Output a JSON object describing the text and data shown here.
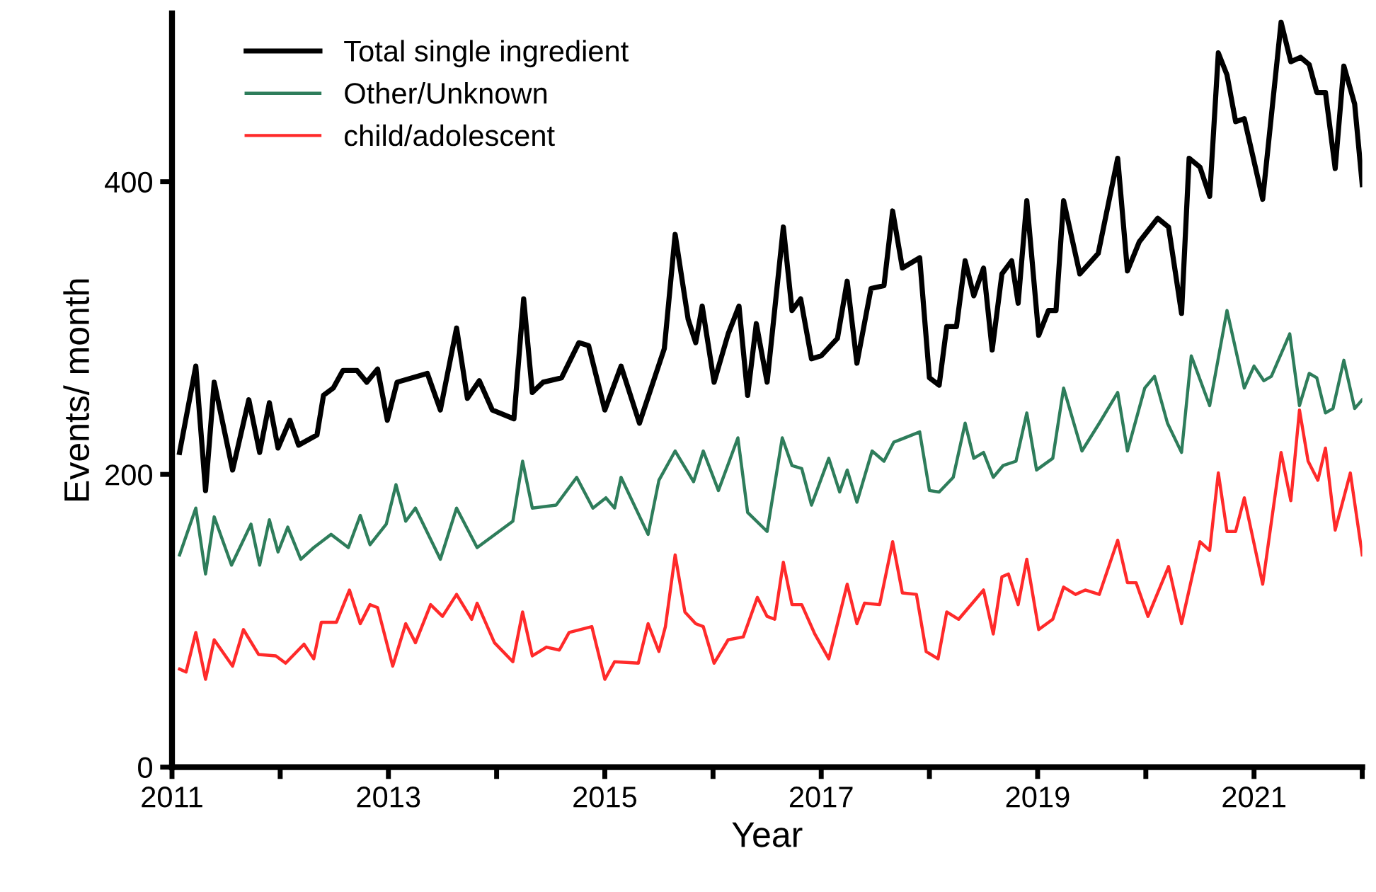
{
  "chart_data": {
    "type": "line",
    "xlabel": "Year",
    "ylabel": "Events/ month",
    "xlim": [
      2011,
      2022
    ],
    "ylim": [
      0,
      515
    ],
    "xticks": [
      2011,
      {
        "value": 2012,
        "label": null
      },
      2013,
      {
        "value": 2014,
        "label": null
      },
      2015,
      {
        "value": 2016,
        "label": null
      },
      2017,
      {
        "value": 2018,
        "label": null
      },
      2019,
      {
        "value": 2020,
        "label": null
      },
      2021,
      {
        "value": 2022,
        "label": null
      }
    ],
    "yticks": [
      0,
      200,
      400
    ],
    "grid": false,
    "legend": "top left",
    "marker": "none",
    "line_style": "solid",
    "series": [
      {
        "name": "Total single ingredient",
        "color": "#000000",
        "x": [
          2011.07,
          2011.22,
          2011.31,
          2011.39,
          2011.56,
          2011.71,
          2011.81,
          2011.9,
          2011.98,
          2012.09,
          2012.17,
          2012.34,
          2012.4,
          2012.49,
          2012.58,
          2012.71,
          2012.8,
          2012.9,
          2012.99,
          2013.08,
          2013.36,
          2013.48,
          2013.63,
          2013.73,
          2013.84,
          2013.96,
          2014.16,
          2014.25,
          2014.33,
          2014.43,
          2014.6,
          2014.76,
          2014.85,
          2015.0,
          2015.15,
          2015.32,
          2015.55,
          2015.65,
          2015.77,
          2015.84,
          2015.9,
          2016.01,
          2016.14,
          2016.24,
          2016.32,
          2016.4,
          2016.5,
          2016.65,
          2016.73,
          2016.81,
          2016.91,
          2017.0,
          2017.15,
          2017.24,
          2017.33,
          2017.46,
          2017.58,
          2017.66,
          2017.75,
          2017.91,
          2018.0,
          2018.09,
          2018.16,
          2018.25,
          2018.33,
          2018.41,
          2018.5,
          2018.58,
          2018.67,
          2018.76,
          2018.82,
          2018.9,
          2019.01,
          2019.1,
          2019.17,
          2019.24,
          2019.39,
          2019.56,
          2019.74,
          2019.83,
          2019.94,
          2020.11,
          2020.21,
          2020.33,
          2020.4,
          2020.5,
          2020.59,
          2020.67,
          2020.75,
          2020.83,
          2020.91,
          2021.08,
          2021.25,
          2021.34,
          2021.43,
          2021.51,
          2021.58,
          2021.66,
          2021.75,
          2021.83,
          2021.93,
          2022.0
        ],
        "values": [
          215,
          274,
          189,
          263,
          203,
          251,
          215,
          249,
          218,
          237,
          220,
          227,
          254,
          259,
          271,
          271,
          263,
          272,
          237,
          263,
          269,
          244,
          300,
          252,
          264,
          244,
          238,
          320,
          256,
          263,
          266,
          290,
          288,
          244,
          274,
          235,
          286,
          364,
          306,
          290,
          315,
          263,
          296,
          315,
          254,
          303,
          263,
          369,
          312,
          320,
          279,
          281,
          293,
          332,
          276,
          327,
          329,
          380,
          341,
          348,
          266,
          261,
          301,
          301,
          346,
          322,
          341,
          285,
          337,
          346,
          317,
          387,
          295,
          312,
          312,
          387,
          337,
          351,
          416,
          339,
          359,
          375,
          369,
          310,
          416,
          410,
          390,
          488,
          473,
          441,
          443,
          388,
          509,
          482,
          485,
          480,
          461,
          461,
          409,
          479,
          453,
          398
        ]
      },
      {
        "name": "Other/Unknown",
        "color": "#2e7d5b",
        "x": [
          2011.07,
          2011.22,
          2011.31,
          2011.39,
          2011.55,
          2011.73,
          2011.81,
          2011.9,
          2011.98,
          2012.07,
          2012.19,
          2012.31,
          2012.47,
          2012.63,
          2012.74,
          2012.83,
          2012.98,
          2013.07,
          2013.16,
          2013.25,
          2013.48,
          2013.63,
          2013.82,
          2014.15,
          2014.24,
          2014.33,
          2014.55,
          2014.74,
          2014.89,
          2015.01,
          2015.09,
          2015.15,
          2015.4,
          2015.5,
          2015.65,
          2015.82,
          2015.91,
          2016.05,
          2016.23,
          2016.32,
          2016.5,
          2016.64,
          2016.73,
          2016.82,
          2016.91,
          2017.07,
          2017.17,
          2017.24,
          2017.33,
          2017.47,
          2017.58,
          2017.67,
          2017.91,
          2018.0,
          2018.09,
          2018.22,
          2018.33,
          2018.41,
          2018.5,
          2018.59,
          2018.68,
          2018.8,
          2018.9,
          2018.99,
          2019.14,
          2019.24,
          2019.41,
          2019.57,
          2019.74,
          2019.83,
          2019.99,
          2020.08,
          2020.2,
          2020.33,
          2020.42,
          2020.59,
          2020.75,
          2020.91,
          2021.0,
          2021.09,
          2021.16,
          2021.33,
          2021.42,
          2021.51,
          2021.58,
          2021.66,
          2021.73,
          2021.83,
          2021.93,
          2022.0
        ],
        "values": [
          145,
          177,
          132,
          171,
          138,
          166,
          138,
          169,
          147,
          164,
          142,
          150,
          159,
          150,
          172,
          152,
          166,
          193,
          168,
          177,
          142,
          177,
          150,
          168,
          209,
          177,
          179,
          198,
          177,
          184,
          177,
          198,
          159,
          196,
          216,
          195,
          216,
          189,
          225,
          174,
          161,
          225,
          206,
          204,
          179,
          211,
          188,
          203,
          181,
          216,
          209,
          222,
          229,
          189,
          188,
          198,
          235,
          211,
          215,
          198,
          206,
          209,
          242,
          203,
          211,
          259,
          216,
          235,
          256,
          216,
          259,
          267,
          235,
          215,
          281,
          247,
          312,
          259,
          274,
          264,
          267,
          296,
          247,
          269,
          266,
          242,
          245,
          278,
          245,
          251
        ]
      },
      {
        "name": "child/adolescent",
        "color": "#ff2a2a",
        "x": [
          2011.07,
          2011.13,
          2011.22,
          2011.31,
          2011.39,
          2011.56,
          2011.66,
          2011.8,
          2011.96,
          2012.05,
          2012.22,
          2012.31,
          2012.38,
          2012.52,
          2012.64,
          2012.74,
          2012.83,
          2012.9,
          2013.04,
          2013.16,
          2013.25,
          2013.39,
          2013.5,
          2013.63,
          2013.77,
          2013.82,
          2013.98,
          2014.15,
          2014.24,
          2014.33,
          2014.46,
          2014.58,
          2014.67,
          2014.88,
          2015.0,
          2015.09,
          2015.31,
          2015.4,
          2015.5,
          2015.56,
          2015.65,
          2015.74,
          2015.84,
          2015.91,
          2016.01,
          2016.14,
          2016.28,
          2016.41,
          2016.5,
          2016.57,
          2016.65,
          2016.73,
          2016.82,
          2016.94,
          2017.07,
          2017.24,
          2017.33,
          2017.4,
          2017.54,
          2017.66,
          2017.75,
          2017.88,
          2017.97,
          2018.08,
          2018.16,
          2018.27,
          2018.5,
          2018.59,
          2018.67,
          2018.73,
          2018.82,
          2018.9,
          2019.01,
          2019.14,
          2019.24,
          2019.35,
          2019.44,
          2019.57,
          2019.74,
          2019.83,
          2019.91,
          2020.02,
          2020.21,
          2020.33,
          2020.5,
          2020.59,
          2020.67,
          2020.75,
          2020.83,
          2020.91,
          2021.08,
          2021.25,
          2021.34,
          2021.42,
          2021.5,
          2021.59,
          2021.66,
          2021.75,
          2021.89,
          2022.0
        ],
        "values": [
          67,
          65,
          92,
          60,
          87,
          69,
          94,
          77,
          76,
          71,
          84,
          74,
          99,
          99,
          121,
          98,
          111,
          109,
          69,
          98,
          85,
          111,
          103,
          118,
          101,
          112,
          85,
          72,
          106,
          76,
          82,
          80,
          92,
          96,
          60,
          72,
          71,
          98,
          79,
          96,
          145,
          106,
          98,
          96,
          71,
          87,
          89,
          116,
          103,
          101,
          140,
          111,
          111,
          91,
          74,
          125,
          98,
          112,
          111,
          154,
          119,
          118,
          79,
          74,
          106,
          101,
          121,
          91,
          130,
          132,
          111,
          142,
          94,
          101,
          123,
          118,
          121,
          118,
          155,
          126,
          126,
          103,
          137,
          98,
          154,
          148,
          201,
          161,
          161,
          184,
          125,
          215,
          182,
          244,
          209,
          196,
          218,
          162,
          201,
          145
        ]
      }
    ]
  }
}
